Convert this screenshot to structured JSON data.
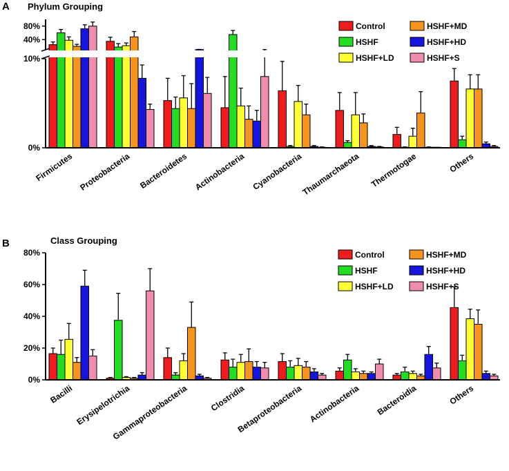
{
  "colors": {
    "Control": "#ee1c1c",
    "HSHF": "#22dd22",
    "HSHF+LD": "#ffff33",
    "HSHF+MD": "#f7941d",
    "HSHF+HD": "#1515dd",
    "HSHF+S": "#f08cac"
  },
  "chart_data": [
    {
      "type": "bar",
      "panel": "A",
      "title": "Phylum Grouping",
      "axis": "broken",
      "ylim_lower": [
        0,
        10
      ],
      "ylim_upper": [
        0,
        100
      ],
      "lower_ticks": [
        "0%",
        "10%"
      ],
      "upper_ticks": [
        "40%",
        "80%"
      ],
      "legend": [
        "Control",
        "HSHF",
        "HSHF+LD",
        "HSHF+MD",
        "HSHF+HD",
        "HSHF+S"
      ],
      "categories": [
        "Firmicutes",
        "Proteobacteria",
        "Bacteroidetes",
        "Actinobacteria",
        "Cyanobacteria",
        "Thaumarchaeota",
        "Thermotogae",
        "Others"
      ],
      "series": [
        {
          "name": "Control",
          "values": [
            25,
            35,
            5.3,
            4.5,
            6.4,
            4.2,
            1.5,
            7.5
          ],
          "errors": [
            8,
            12,
            2.5,
            3.5,
            3.3,
            2.0,
            0.8,
            1.4
          ]
        },
        {
          "name": "HSHF",
          "values": [
            60,
            18,
            4.4,
            55,
            0.15,
            0.6,
            0.05,
            0.9
          ],
          "errors": [
            10,
            10,
            1.3,
            12,
            0.1,
            0.2,
            0.05,
            0.4
          ]
        },
        {
          "name": "HSHF+LD",
          "values": [
            38,
            22,
            5.6,
            4.7,
            5.2,
            3.7,
            1.3,
            6.6
          ],
          "errors": [
            10,
            8,
            2.5,
            2.0,
            1.8,
            2.5,
            0.9,
            1.6
          ]
        },
        {
          "name": "HSHF+MD",
          "values": [
            20,
            48,
            4.4,
            3.2,
            3.7,
            2.8,
            3.9,
            6.6
          ],
          "errors": [
            6,
            16,
            2.8,
            1.5,
            1.2,
            1.0,
            2.4,
            1.6
          ]
        },
        {
          "name": "HSHF+HD",
          "values": [
            72,
            7.8,
            10.5,
            3.0,
            0.15,
            0.15,
            0.05,
            0.45
          ],
          "errors": [
            12,
            1.5,
            0.5,
            1.2,
            0.1,
            0.1,
            0.05,
            0.2
          ]
        },
        {
          "name": "HSHF+S",
          "values": [
            80,
            4.3,
            6.1,
            8.0,
            0.05,
            0.1,
            0.02,
            0.15
          ],
          "errors": [
            12,
            0.6,
            1.8,
            2.5,
            0.05,
            0.05,
            0.02,
            0.1
          ]
        }
      ]
    },
    {
      "type": "bar",
      "panel": "B",
      "title": "Class Grouping",
      "ylim": [
        0,
        80
      ],
      "ticks": [
        "0%",
        "20%",
        "40%",
        "60%",
        "80%"
      ],
      "legend": [
        "Control",
        "HSHF",
        "HSHF+LD",
        "HSHF+MD",
        "HSHF+HD",
        "HSHF+S"
      ],
      "categories": [
        "Bacilli",
        "Erysipelotrichia",
        "Gammaproteobacteria",
        "Clostridia",
        "Betaproteobacteria",
        "Actinobacteria",
        "Bacteroidia",
        "Others"
      ],
      "series": [
        {
          "name": "Control",
          "values": [
            16.5,
            1,
            14,
            12.5,
            11.5,
            5.5,
            3,
            45.5
          ],
          "errors": [
            3.5,
            0.5,
            6,
            4.5,
            5,
            2,
            1,
            13
          ]
        },
        {
          "name": "HSHF",
          "values": [
            16,
            37.5,
            3,
            8,
            8,
            12.5,
            5,
            12
          ],
          "errors": [
            9,
            17,
            1.5,
            5,
            4,
            3.5,
            3,
            3.5
          ]
        },
        {
          "name": "HSHF+LD",
          "values": [
            25.5,
            1.5,
            12,
            11,
            9,
            5,
            4,
            38.5
          ],
          "errors": [
            10,
            0.5,
            4.5,
            5,
            4.5,
            2,
            1.5,
            6
          ]
        },
        {
          "name": "HSHF+MD",
          "values": [
            11,
            1,
            33,
            11.5,
            8,
            4,
            2.5,
            35
          ],
          "errors": [
            3,
            0.5,
            16,
            8,
            3.5,
            1.5,
            1,
            9
          ]
        },
        {
          "name": "HSHF+HD",
          "values": [
            59,
            3,
            2.5,
            8,
            5,
            4,
            16,
            4
          ],
          "errors": [
            10,
            1.5,
            1,
            3.5,
            2,
            1,
            5,
            1.5
          ]
        },
        {
          "name": "HSHF+S",
          "values": [
            15,
            56,
            1,
            7.5,
            3,
            10,
            7.5,
            2.5
          ],
          "errors": [
            4,
            14,
            0.5,
            3.5,
            1,
            3,
            3,
            1
          ]
        }
      ]
    }
  ]
}
